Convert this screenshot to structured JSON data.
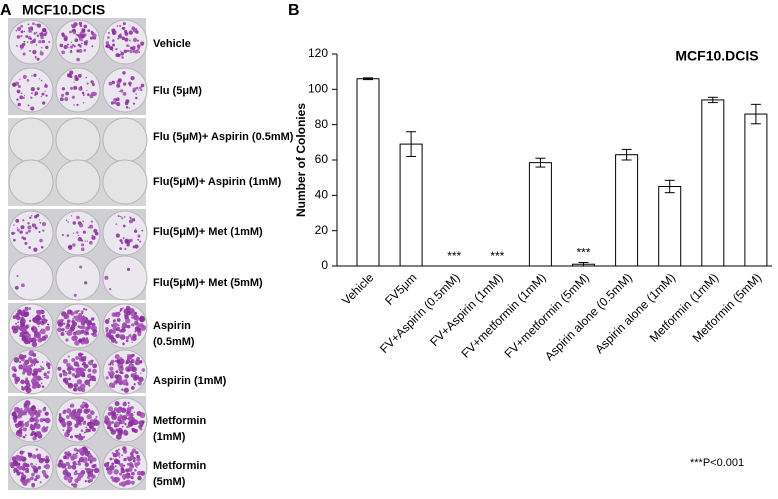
{
  "panel_a": {
    "letter": "A",
    "title": "MCF10.DCIS",
    "labels": [
      [
        "Vehicle"
      ],
      [
        "Flu (5μM)"
      ],
      [
        "Flu (5μM)+ Aspirin (0.5mM)"
      ],
      [
        "Flu(5μM)+ Aspirin (1mM)"
      ],
      [
        "Flu(5μM)+ Met (1mM)"
      ],
      [
        "Flu(5μM)+ Met (5mM)"
      ],
      [
        "Aspirin",
        "(0.5mM)"
      ],
      [
        "Aspirin (1mM)"
      ],
      [
        "Metformin",
        "(1mM)"
      ],
      [
        "Metformin",
        "(5mM)"
      ]
    ]
  },
  "chart_data": {
    "type": "bar",
    "panel_letter": "B",
    "title": "MCF10.DCIS",
    "y_label": "Number of Colonies",
    "categories": [
      "Vehicle",
      "FV5μm",
      "FV+Aspirin (0.5mM)",
      "FV+Aspirin (1mM)",
      "FV+metformin (1mM)",
      "FV+metformin (5mM)",
      "Aspirin alone (0.5mM)",
      "Aspirin alone (1mM)",
      "Metformin (1mM)",
      "Metformin (5mM)"
    ],
    "values": [
      106,
      69,
      0,
      0,
      58.5,
      1,
      63,
      45,
      94,
      86
    ],
    "errors": [
      0.5,
      7,
      0,
      0,
      2.5,
      1,
      3,
      3.5,
      1.5,
      5.5
    ],
    "significance": [
      null,
      null,
      "***",
      "***",
      null,
      "***",
      null,
      null,
      null,
      null
    ],
    "color": "#ffffff",
    "ylim": [
      0,
      120
    ],
    "yticks": [
      0,
      20,
      40,
      60,
      80,
      100,
      120
    ],
    "footnote": "***P<0.001"
  }
}
